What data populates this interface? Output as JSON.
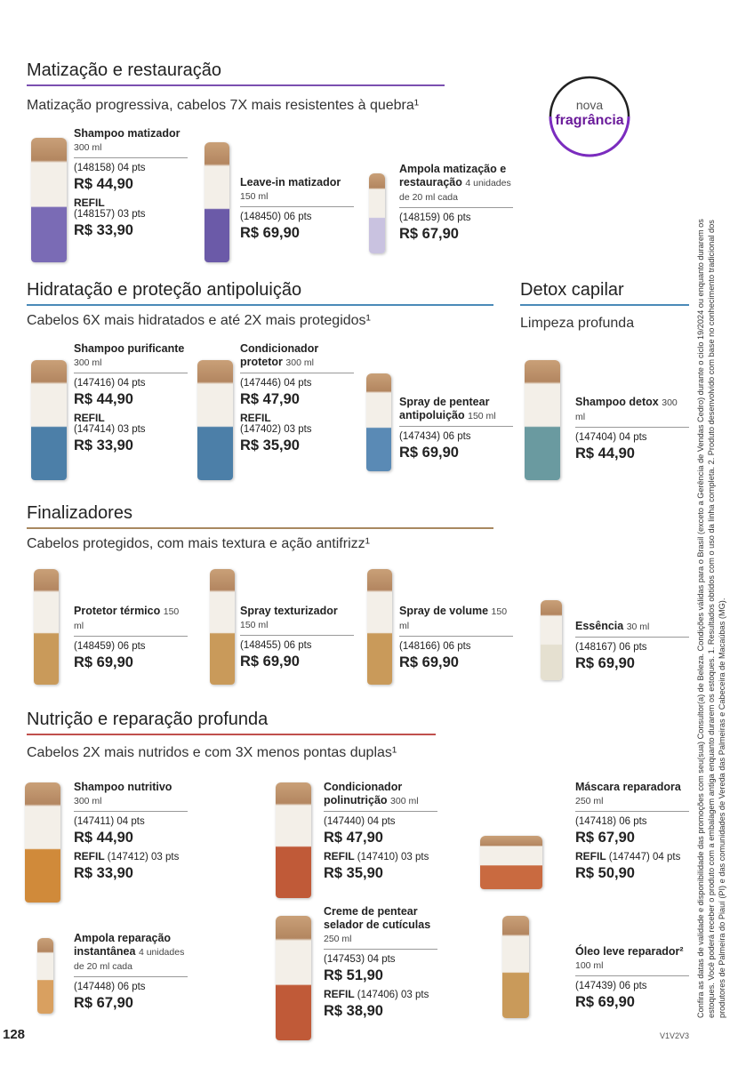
{
  "badge": {
    "line1": "nova",
    "line2": "fragrância"
  },
  "sections": [
    {
      "title": "Matização e restauração",
      "subtitle": "Matização progressiva, cabelos 7X mais resistentes à quebra¹",
      "products": [
        {
          "name": "Shampoo matizador",
          "size": "300 ml",
          "code": "(148158) 04 pts",
          "price": "R$ 44,90",
          "refil": {
            "label": "REFIL",
            "code": "(148157) 03 pts",
            "price": "R$ 33,90"
          }
        },
        {
          "name": "Leave-in matizador",
          "size": "150 ml",
          "code": "(148450) 06 pts",
          "price": "R$ 69,90"
        },
        {
          "name": "Ampola matização e restauração",
          "size": "4 unidades de 20 ml cada",
          "code": "(148159) 06 pts",
          "price": "R$ 67,90"
        }
      ]
    },
    {
      "title": "Hidratação e proteção antipoluição",
      "subtitle": "Cabelos 6X mais hidratados e até 2X mais protegidos¹",
      "products": [
        {
          "name": "Shampoo purificante",
          "size": "300 ml",
          "code": "(147416) 04 pts",
          "price": "R$ 44,90",
          "refil": {
            "label": "REFIL",
            "code": "(147414) 03 pts",
            "price": "R$ 33,90"
          }
        },
        {
          "name": "Condicionador protetor",
          "size": "300 ml",
          "code": "(147446) 04 pts",
          "price": "R$ 47,90",
          "refil": {
            "label": "REFIL",
            "code": "(147402) 03 pts",
            "price": "R$ 35,90"
          }
        },
        {
          "name": "Spray de pentear antipoluição",
          "size": "150 ml",
          "code": "(147434) 06 pts",
          "price": "R$ 69,90"
        }
      ]
    },
    {
      "title": "Detox capilar",
      "subtitle": "Limpeza profunda",
      "products": [
        {
          "name": "Shampoo detox",
          "size": "300 ml",
          "code": "(147404) 04 pts",
          "price": "R$ 44,90"
        }
      ]
    },
    {
      "title": "Finalizadores",
      "subtitle": "Cabelos protegidos, com mais textura e ação antifrizz¹",
      "products": [
        {
          "name": "Protetor térmico",
          "size": "150 ml",
          "code": "(148459) 06 pts",
          "price": "R$ 69,90"
        },
        {
          "name": "Spray texturizador",
          "size": "150 ml",
          "code": "(148455) 06 pts",
          "price": "R$ 69,90"
        },
        {
          "name": "Spray de volume",
          "size": "150 ml",
          "code": "(148166) 06 pts",
          "price": "R$ 69,90"
        },
        {
          "name": "Essência",
          "size": "30 ml",
          "code": "(148167) 06 pts",
          "price": "R$ 69,90"
        }
      ]
    },
    {
      "title": "Nutrição e reparação profunda",
      "subtitle": "Cabelos 2X mais nutridos e com 3X menos pontas duplas¹",
      "products": [
        {
          "name": "Shampoo nutritivo",
          "size": "300 ml",
          "code": "(147411) 04 pts",
          "price": "R$ 44,90",
          "refil": {
            "label": "REFIL",
            "code": "(147412) 03 pts",
            "price": "R$ 33,90"
          }
        },
        {
          "name": "Condicionador polinutrição",
          "size": "300 ml",
          "code": "(147440) 04 pts",
          "price": "R$ 47,90",
          "refil": {
            "label": "REFIL",
            "code": "(147410) 03 pts",
            "price": "R$ 35,90"
          }
        },
        {
          "name": "Máscara reparadora",
          "size": "250 ml",
          "code": "(147418) 06 pts",
          "price": "R$ 67,90",
          "refil": {
            "label": "REFIL",
            "code": "(147447) 04 pts",
            "price": "R$ 50,90"
          }
        },
        {
          "name": "Ampola reparação instantânea",
          "size": "4 unidades de 20 ml cada",
          "code": "(147448) 06 pts",
          "price": "R$ 67,90"
        },
        {
          "name": "Creme de pentear selador de cutículas",
          "size": "250 ml",
          "code": "(147453) 04 pts",
          "price": "R$ 51,90",
          "refil": {
            "label": "REFIL",
            "code": "(147406) 03 pts",
            "price": "R$ 38,90"
          }
        },
        {
          "name": "Óleo leve reparador²",
          "size": "100 ml",
          "code": "(147439) 06 pts",
          "price": "R$ 69,90"
        }
      ]
    }
  ],
  "disclaimer": "Confira as datas de validade e disponibilidade das promoções com seu(sua) Consultor(a) de Beleza. Condições válidas para o Brasil (exceto a Gerência de Vendas Cedro) durante o ciclo 19/2024 ou enquanto durarem os estoques. Você poderá receber o produto com a embalagem antiga enquanto durarem os estoques. 1. Resultados obtidos com o uso da linha completa. 2. Produto desenvolvido com base no conhecimento tradicional dos produtores de Palmeira do Piauí (PI) e das comunidades de Vereda das Palmeiras e Cabeceira de Macaúbas (MG).",
  "page_number": "128",
  "edition": "V1V2V3"
}
